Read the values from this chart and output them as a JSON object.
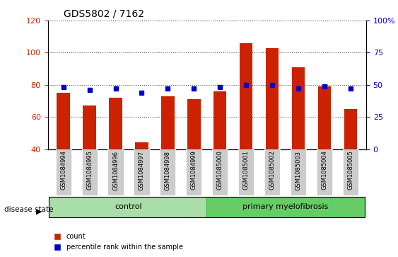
{
  "title": "GDS5802 / 7162",
  "samples": [
    "GSM1084994",
    "GSM1084995",
    "GSM1084996",
    "GSM1084997",
    "GSM1084998",
    "GSM1084999",
    "GSM1085000",
    "GSM1085001",
    "GSM1085002",
    "GSM1085003",
    "GSM1085004",
    "GSM1085005"
  ],
  "counts": [
    75,
    67,
    72,
    44,
    73,
    71,
    76,
    106,
    103,
    91,
    79,
    65
  ],
  "percentile_ranks": [
    48,
    46,
    47,
    44,
    47,
    47,
    48,
    50,
    50,
    47,
    49,
    47
  ],
  "groups": [
    "control",
    "control",
    "control",
    "control",
    "control",
    "control",
    "primary myelofibrosis",
    "primary myelofibrosis",
    "primary myelofibrosis",
    "primary myelofibrosis",
    "primary myelofibrosis",
    "primary myelofibrosis"
  ],
  "ylim_left": [
    40,
    120
  ],
  "ylim_right": [
    0,
    100
  ],
  "bar_color": "#cc2200",
  "dot_color": "#0000cc",
  "grid_color": "#000000",
  "bg_plot": "#ffffff",
  "bg_xticklabels": "#cccccc",
  "control_color": "#aaddaa",
  "myelofibrosis_color": "#66cc66",
  "left_tick_color": "#cc2200",
  "right_tick_color": "#0000cc",
  "yticks_left": [
    40,
    60,
    80,
    100,
    120
  ],
  "yticks_right": [
    0,
    25,
    50,
    75,
    100
  ],
  "legend_count_label": "count",
  "legend_pct_label": "percentile rank within the sample",
  "disease_state_label": "disease state",
  "control_label": "control",
  "myelofibrosis_label": "primary myelofibrosis",
  "bar_width": 0.5
}
